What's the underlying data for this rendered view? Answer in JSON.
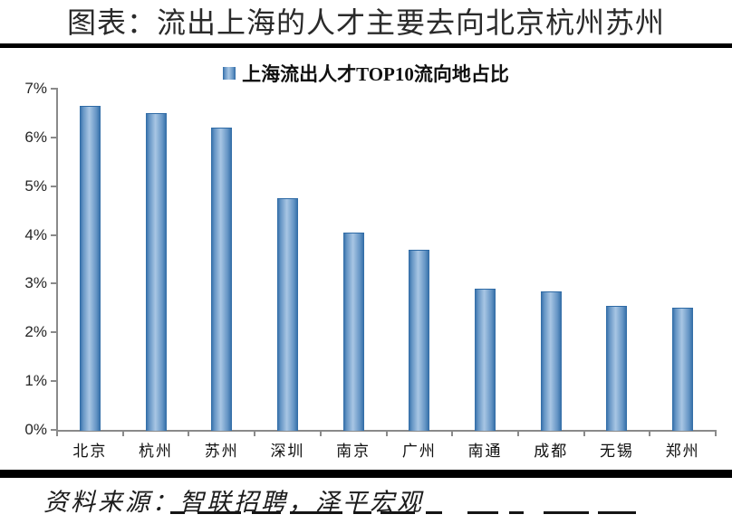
{
  "header": {
    "title": "图表：流出上海的人才主要去向北京杭州苏州"
  },
  "legend": {
    "label": "上海流出人才TOP10流向地占比",
    "marker_icon": "square-marker-icon"
  },
  "footer": {
    "source": "资料来源：智联招聘，泽平宏观"
  },
  "colors": {
    "bar_dark": "#2e6aa5",
    "bar_mid": "#6494c4",
    "bar_light": "#a8c6e4",
    "axis": "#8a8a8a",
    "rule": "#000000",
    "title_text": "#2a2a2a"
  },
  "chart_data": {
    "type": "bar",
    "title": "上海流出人才TOP10流向地占比",
    "categories": [
      "北京",
      "杭州",
      "苏州",
      "深圳",
      "南京",
      "广州",
      "南通",
      "成都",
      "无锡",
      "郑州"
    ],
    "values": [
      6.65,
      6.5,
      6.2,
      4.75,
      4.05,
      3.7,
      2.9,
      2.85,
      2.55,
      2.5
    ],
    "unit": "%",
    "xlabel": "",
    "ylabel": "",
    "ylim": [
      0,
      7
    ],
    "ytick_step": 1,
    "ytick_labels": [
      "0%",
      "1%",
      "2%",
      "3%",
      "4%",
      "5%",
      "6%",
      "7%"
    ],
    "grid": false,
    "legend_position": "top-center"
  }
}
